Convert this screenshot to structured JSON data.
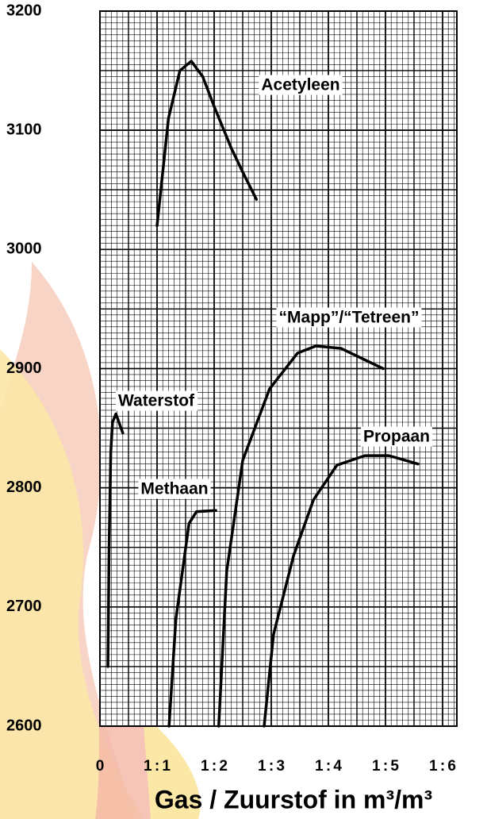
{
  "chart_data": {
    "type": "line",
    "x_label": "Gas / Zuurstof in m³/m³",
    "xlim": [
      0,
      6.25
    ],
    "ylim": [
      2600,
      3200
    ],
    "xticks": [
      0,
      {
        "value": 1,
        "label": "1 : 1"
      },
      {
        "value": 2,
        "label": "1 : 2"
      },
      {
        "value": 3,
        "label": "1 : 3"
      },
      {
        "value": 4,
        "label": "1 : 4"
      },
      {
        "value": 5,
        "label": "1 : 5"
      },
      {
        "value": 6,
        "label": "1 : 6"
      }
    ],
    "yticks": [
      2600,
      2700,
      2800,
      2900,
      3000,
      3100,
      3200
    ],
    "grid": true,
    "series": [
      {
        "name": "Acetyleen",
        "color": "#000000",
        "x": [
          1.0,
          1.2,
          1.4,
          1.6,
          1.8,
          2.0,
          2.3,
          2.5,
          2.74
        ],
        "values": [
          3020,
          3110,
          3150,
          3158,
          3145,
          3120,
          3085,
          3065,
          3042
        ]
      },
      {
        "name": "“Mapp”/“Tetreen”",
        "color": "#000000",
        "x": [
          2.08,
          2.22,
          2.5,
          2.97,
          3.46,
          3.78,
          4.22,
          4.96
        ],
        "values": [
          2600,
          2730,
          2823,
          2883,
          2913,
          2919,
          2917,
          2900
        ]
      },
      {
        "name": "Waterstof",
        "color": "#000000",
        "x": [
          0.14,
          0.16,
          0.19,
          0.22,
          0.28,
          0.4
        ],
        "values": [
          2650,
          2750,
          2830,
          2855,
          2862,
          2846
        ]
      },
      {
        "name": "Propaan",
        "color": "#000000",
        "x": [
          2.875,
          3.04,
          3.39,
          3.74,
          4.15,
          4.64,
          5.06,
          5.57
        ],
        "values": [
          2600,
          2677,
          2743,
          2790,
          2819,
          2827,
          2827,
          2820
        ]
      },
      {
        "name": "Methaan",
        "color": "#000000",
        "x": [
          1.21,
          1.33,
          1.56,
          1.69,
          2.03
        ],
        "values": [
          2600,
          2690,
          2770,
          2780,
          2781
        ]
      }
    ]
  }
}
